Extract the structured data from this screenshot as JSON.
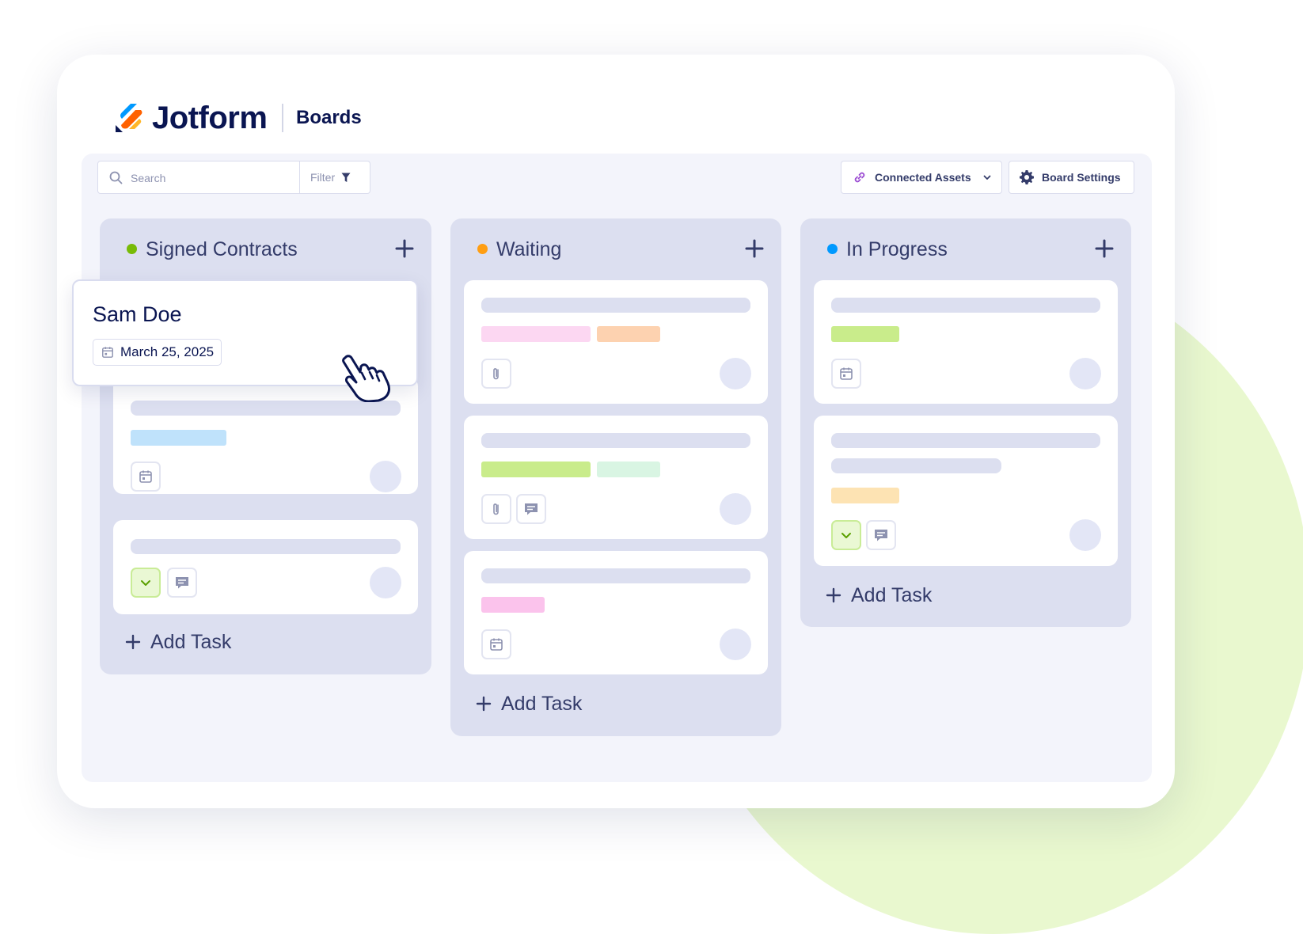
{
  "brand": {
    "name": "Jotform",
    "product": "Boards"
  },
  "toolbar": {
    "search_placeholder": "Search",
    "filter_label": "Filter",
    "connected_assets_label": "Connected Assets",
    "board_settings_label": "Board Settings"
  },
  "columns": [
    {
      "title": "Signed Contracts",
      "dot_color": "#78bb07",
      "add_task_label": "Add Task"
    },
    {
      "title": "Waiting",
      "dot_color": "#ff9e13",
      "add_task_label": "Add Task"
    },
    {
      "title": "In Progress",
      "dot_color": "#0099ff",
      "add_task_label": "Add Task"
    }
  ],
  "dragged_card": {
    "name": "Sam Doe",
    "date": "March 25, 2025"
  },
  "icons": [
    "search-icon",
    "filter-icon",
    "link-icon",
    "chevron-down-icon",
    "gear-icon",
    "plus-icon",
    "calendar-icon",
    "paperclip-icon",
    "comment-icon",
    "check-icon",
    "hand-pointer-icon"
  ],
  "colors": {
    "brand_navy": "#0a1551",
    "column_bg": "#dcdff0",
    "tag_pink": "#fcd7f2",
    "tag_orange": "#fdd2b0",
    "tag_green": "#c9ec8b",
    "tag_mint": "#d9f5e3",
    "tag_blue": "#bfe2fb",
    "tag_yellow": "#fde3b3"
  }
}
